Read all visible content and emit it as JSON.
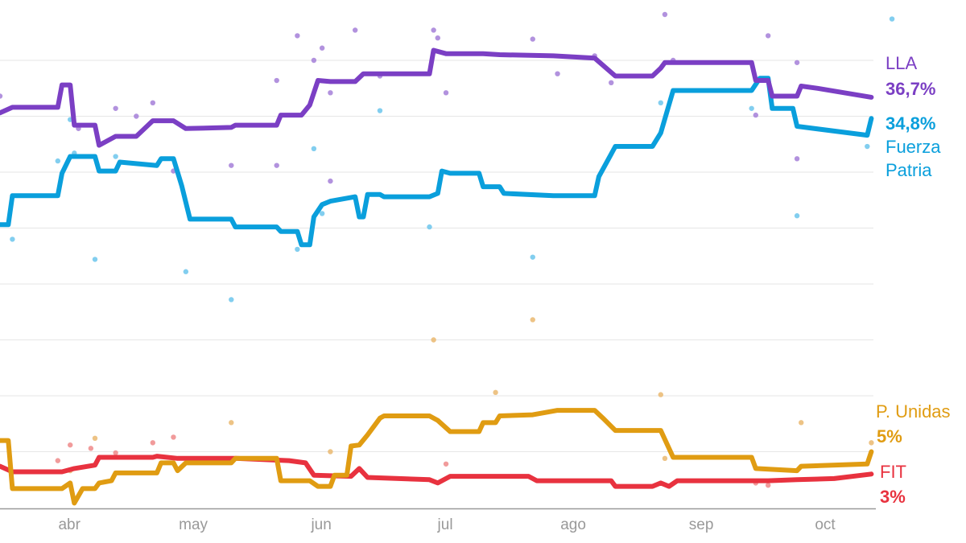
{
  "chart_data": {
    "type": "line",
    "xaxis": {
      "type": "date",
      "tick_labels": [
        "abr",
        "may",
        "jun",
        "jul",
        "ago",
        "sep",
        "oct"
      ],
      "tick_dates": [
        "2025-04-01",
        "2025-05-01",
        "2025-06-01",
        "2025-07-01",
        "2025-08-01",
        "2025-09-01",
        "2025-10-01"
      ],
      "range": [
        "2025-03-15",
        "2025-10-12"
      ]
    },
    "ylim": [
      0,
      45
    ],
    "gridlines_y": [
      5,
      10,
      15,
      20,
      25,
      30,
      35,
      40
    ],
    "grid": true,
    "legend": "direct labels at right end of lines",
    "series": [
      {
        "name": "LLA",
        "end_label": "36,7%",
        "color": "#7b3fc4",
        "dot_color": "#a57fd8",
        "line": [
          [
            "2025-03-15",
            35.3
          ],
          [
            "2025-03-18",
            35.8
          ],
          [
            "2025-03-29",
            35.8
          ],
          [
            "2025-03-30",
            37.8
          ],
          [
            "2025-04-01",
            37.8
          ],
          [
            "2025-04-02",
            34.2
          ],
          [
            "2025-04-07",
            34.2
          ],
          [
            "2025-04-08",
            32.4
          ],
          [
            "2025-04-12",
            33.2
          ],
          [
            "2025-04-17",
            33.2
          ],
          [
            "2025-04-21",
            34.6
          ],
          [
            "2025-04-26",
            34.6
          ],
          [
            "2025-04-29",
            33.9
          ],
          [
            "2025-05-10",
            34.0
          ],
          [
            "2025-05-11",
            34.2
          ],
          [
            "2025-05-21",
            34.2
          ],
          [
            "2025-05-22",
            35.1
          ],
          [
            "2025-05-27",
            35.1
          ],
          [
            "2025-05-29",
            36.0
          ],
          [
            "2025-05-31",
            38.2
          ],
          [
            "2025-06-03",
            38.1
          ],
          [
            "2025-06-09",
            38.1
          ],
          [
            "2025-06-11",
            38.8
          ],
          [
            "2025-06-27",
            38.8
          ],
          [
            "2025-06-28",
            40.9
          ],
          [
            "2025-07-01",
            40.6
          ],
          [
            "2025-07-10",
            40.6
          ],
          [
            "2025-07-14",
            40.5
          ],
          [
            "2025-07-27",
            40.4
          ],
          [
            "2025-08-06",
            40.2
          ],
          [
            "2025-08-11",
            38.6
          ],
          [
            "2025-08-20",
            38.6
          ],
          [
            "2025-08-22",
            39.3
          ],
          [
            "2025-08-23",
            39.8
          ],
          [
            "2025-09-13",
            39.8
          ],
          [
            "2025-09-14",
            38.2
          ],
          [
            "2025-09-17",
            38.2
          ],
          [
            "2025-09-18",
            36.8
          ],
          [
            "2025-09-24",
            36.8
          ],
          [
            "2025-09-25",
            37.7
          ],
          [
            "2025-09-29",
            37.5
          ],
          [
            "2025-10-12",
            36.7
          ]
        ],
        "polls": [
          [
            "2025-03-15",
            36.8
          ],
          [
            "2025-04-03",
            33.9
          ],
          [
            "2025-04-12",
            35.7
          ],
          [
            "2025-04-17",
            35.0
          ],
          [
            "2025-04-21",
            36.2
          ],
          [
            "2025-04-26",
            30.1
          ],
          [
            "2025-05-10",
            30.6
          ],
          [
            "2025-05-21",
            38.2
          ],
          [
            "2025-05-21",
            30.6
          ],
          [
            "2025-05-26",
            42.2
          ],
          [
            "2025-05-30",
            40.0
          ],
          [
            "2025-06-01",
            41.1
          ],
          [
            "2025-06-03",
            29.2
          ],
          [
            "2025-06-03",
            37.1
          ],
          [
            "2025-06-09",
            42.7
          ],
          [
            "2025-06-15",
            38.6
          ],
          [
            "2025-06-28",
            42.7
          ],
          [
            "2025-06-29",
            42.0
          ],
          [
            "2025-07-01",
            37.1
          ],
          [
            "2025-07-22",
            41.9
          ],
          [
            "2025-07-28",
            38.8
          ],
          [
            "2025-08-06",
            40.4
          ],
          [
            "2025-08-10",
            38.0
          ],
          [
            "2025-08-23",
            44.1
          ],
          [
            "2025-08-25",
            40.0
          ],
          [
            "2025-09-14",
            35.1
          ],
          [
            "2025-09-17",
            42.2
          ],
          [
            "2025-09-24",
            31.2
          ],
          [
            "2025-09-24",
            39.8
          ]
        ]
      },
      {
        "name": "Fuerza Patria",
        "name_lines": [
          "Fuerza",
          "Patria"
        ],
        "end_label": "34,8%",
        "color": "#0a9fdc",
        "dot_color": "#6cc6ec",
        "line": [
          [
            "2025-03-15",
            25.3
          ],
          [
            "2025-03-17",
            25.3
          ],
          [
            "2025-03-18",
            27.9
          ],
          [
            "2025-03-29",
            27.9
          ],
          [
            "2025-03-30",
            29.9
          ],
          [
            "2025-04-01",
            31.4
          ],
          [
            "2025-04-07",
            31.4
          ],
          [
            "2025-04-08",
            30.1
          ],
          [
            "2025-04-12",
            30.1
          ],
          [
            "2025-04-13",
            30.9
          ],
          [
            "2025-04-22",
            30.6
          ],
          [
            "2025-04-23",
            31.2
          ],
          [
            "2025-04-26",
            31.2
          ],
          [
            "2025-04-28",
            28.8
          ],
          [
            "2025-04-30",
            25.8
          ],
          [
            "2025-05-10",
            25.8
          ],
          [
            "2025-05-11",
            25.1
          ],
          [
            "2025-05-21",
            25.1
          ],
          [
            "2025-05-22",
            24.7
          ],
          [
            "2025-05-26",
            24.7
          ],
          [
            "2025-05-27",
            23.5
          ],
          [
            "2025-05-29",
            23.5
          ],
          [
            "2025-05-30",
            26.0
          ],
          [
            "2025-06-01",
            27.1
          ],
          [
            "2025-06-03",
            27.4
          ],
          [
            "2025-06-09",
            27.8
          ],
          [
            "2025-06-10",
            26.0
          ],
          [
            "2025-06-11",
            26.0
          ],
          [
            "2025-06-12",
            28.0
          ],
          [
            "2025-06-15",
            28.0
          ],
          [
            "2025-06-16",
            27.8
          ],
          [
            "2025-06-27",
            27.8
          ],
          [
            "2025-06-29",
            28.1
          ],
          [
            "2025-06-30",
            30.1
          ],
          [
            "2025-07-02",
            29.9
          ],
          [
            "2025-07-09",
            29.9
          ],
          [
            "2025-07-10",
            28.7
          ],
          [
            "2025-07-14",
            28.7
          ],
          [
            "2025-07-15",
            28.1
          ],
          [
            "2025-07-27",
            27.9
          ],
          [
            "2025-08-06",
            27.9
          ],
          [
            "2025-08-07",
            29.6
          ],
          [
            "2025-08-11",
            32.3
          ],
          [
            "2025-08-20",
            32.3
          ],
          [
            "2025-08-22",
            33.5
          ],
          [
            "2025-08-25",
            37.3
          ],
          [
            "2025-09-13",
            37.3
          ],
          [
            "2025-09-15",
            38.4
          ],
          [
            "2025-09-17",
            38.4
          ],
          [
            "2025-09-18",
            35.7
          ],
          [
            "2025-09-23",
            35.7
          ],
          [
            "2025-09-24",
            34.1
          ],
          [
            "2025-10-11",
            33.3
          ],
          [
            "2025-10-12",
            34.8
          ]
        ],
        "polls": [
          [
            "2025-03-18",
            24.0
          ],
          [
            "2025-03-29",
            31.0
          ],
          [
            "2025-04-01",
            34.7
          ],
          [
            "2025-04-02",
            31.7
          ],
          [
            "2025-04-07",
            22.2
          ],
          [
            "2025-04-12",
            31.4
          ],
          [
            "2025-04-29",
            21.1
          ],
          [
            "2025-05-10",
            18.6
          ],
          [
            "2025-05-26",
            23.1
          ],
          [
            "2025-05-30",
            32.1
          ],
          [
            "2025-06-01",
            26.3
          ],
          [
            "2025-06-15",
            35.5
          ],
          [
            "2025-06-27",
            25.1
          ],
          [
            "2025-07-22",
            22.4
          ],
          [
            "2025-08-22",
            36.2
          ],
          [
            "2025-09-13",
            35.7
          ],
          [
            "2025-09-24",
            26.1
          ],
          [
            "2025-10-11",
            32.3
          ],
          [
            "2025-10-17",
            43.7
          ]
        ]
      },
      {
        "name": "P. Unidas",
        "end_label": "5%",
        "color": "#e09c12",
        "dot_color": "#eab870",
        "line": [
          [
            "2025-03-15",
            6.0
          ],
          [
            "2025-03-17",
            6.0
          ],
          [
            "2025-03-18",
            1.7
          ],
          [
            "2025-03-30",
            1.7
          ],
          [
            "2025-04-01",
            2.2
          ],
          [
            "2025-04-02",
            0.4
          ],
          [
            "2025-04-04",
            1.7
          ],
          [
            "2025-04-07",
            1.7
          ],
          [
            "2025-04-08",
            2.2
          ],
          [
            "2025-04-11",
            2.4
          ],
          [
            "2025-04-12",
            3.1
          ],
          [
            "2025-04-22",
            3.1
          ],
          [
            "2025-04-23",
            4.0
          ],
          [
            "2025-04-26",
            4.0
          ],
          [
            "2025-04-27",
            3.3
          ],
          [
            "2025-04-29",
            4.0
          ],
          [
            "2025-05-10",
            4.0
          ],
          [
            "2025-05-11",
            4.4
          ],
          [
            "2025-05-21",
            4.4
          ],
          [
            "2025-05-22",
            2.4
          ],
          [
            "2025-05-29",
            2.4
          ],
          [
            "2025-05-31",
            1.9
          ],
          [
            "2025-06-03",
            1.9
          ],
          [
            "2025-06-04",
            2.9
          ],
          [
            "2025-06-07",
            2.9
          ],
          [
            "2025-06-08",
            5.5
          ],
          [
            "2025-06-10",
            5.6
          ],
          [
            "2025-06-12",
            6.5
          ],
          [
            "2025-06-15",
            8.0
          ],
          [
            "2025-06-16",
            8.2
          ],
          [
            "2025-06-27",
            8.2
          ],
          [
            "2025-06-29",
            7.8
          ],
          [
            "2025-07-02",
            6.8
          ],
          [
            "2025-07-09",
            6.8
          ],
          [
            "2025-07-10",
            7.6
          ],
          [
            "2025-07-13",
            7.6
          ],
          [
            "2025-07-14",
            8.2
          ],
          [
            "2025-07-22",
            8.3
          ],
          [
            "2025-07-28",
            8.7
          ],
          [
            "2025-08-06",
            8.7
          ],
          [
            "2025-08-08",
            8.0
          ],
          [
            "2025-08-11",
            6.9
          ],
          [
            "2025-08-22",
            6.9
          ],
          [
            "2025-08-25",
            4.5
          ],
          [
            "2025-09-13",
            4.5
          ],
          [
            "2025-09-14",
            3.5
          ],
          [
            "2025-09-24",
            3.3
          ],
          [
            "2025-09-25",
            3.7
          ],
          [
            "2025-10-11",
            3.9
          ],
          [
            "2025-10-12",
            5.0
          ]
        ],
        "polls": [
          [
            "2025-04-01",
            3.3
          ],
          [
            "2025-04-07",
            6.2
          ],
          [
            "2025-05-10",
            7.6
          ],
          [
            "2025-06-03",
            5.0
          ],
          [
            "2025-06-28",
            15.0
          ],
          [
            "2025-07-13",
            10.3
          ],
          [
            "2025-07-22",
            16.8
          ],
          [
            "2025-08-22",
            10.1
          ],
          [
            "2025-08-23",
            4.4
          ],
          [
            "2025-09-25",
            7.6
          ],
          [
            "2025-10-12",
            5.8
          ]
        ]
      },
      {
        "name": "FIT",
        "end_label": "3%",
        "color": "#e8323f",
        "dot_color": "#ee8a8a",
        "line": [
          [
            "2025-03-15",
            3.7
          ],
          [
            "2025-03-18",
            3.2
          ],
          [
            "2025-03-30",
            3.2
          ],
          [
            "2025-04-02",
            3.5
          ],
          [
            "2025-04-07",
            3.8
          ],
          [
            "2025-04-08",
            4.5
          ],
          [
            "2025-04-21",
            4.5
          ],
          [
            "2025-04-22",
            4.6
          ],
          [
            "2025-04-27",
            4.4
          ],
          [
            "2025-05-01",
            4.4
          ],
          [
            "2025-05-11",
            4.4
          ],
          [
            "2025-05-24",
            4.2
          ],
          [
            "2025-05-28",
            4.0
          ],
          [
            "2025-05-30",
            2.9
          ],
          [
            "2025-06-08",
            2.8
          ],
          [
            "2025-06-10",
            3.5
          ],
          [
            "2025-06-12",
            2.7
          ],
          [
            "2025-06-27",
            2.5
          ],
          [
            "2025-06-29",
            2.2
          ],
          [
            "2025-07-02",
            2.8
          ],
          [
            "2025-07-21",
            2.8
          ],
          [
            "2025-07-23",
            2.4
          ],
          [
            "2025-08-10",
            2.4
          ],
          [
            "2025-08-11",
            1.9
          ],
          [
            "2025-08-20",
            1.9
          ],
          [
            "2025-08-22",
            2.2
          ],
          [
            "2025-08-24",
            1.9
          ],
          [
            "2025-08-26",
            2.4
          ],
          [
            "2025-09-13",
            2.4
          ],
          [
            "2025-09-17",
            2.4
          ],
          [
            "2025-09-24",
            2.5
          ],
          [
            "2025-10-03",
            2.6
          ],
          [
            "2025-10-12",
            3.0
          ]
        ],
        "polls": [
          [
            "2025-03-29",
            4.2
          ],
          [
            "2025-04-01",
            5.6
          ],
          [
            "2025-04-06",
            5.3
          ],
          [
            "2025-04-12",
            4.9
          ],
          [
            "2025-04-21",
            5.8
          ],
          [
            "2025-04-26",
            6.3
          ],
          [
            "2025-07-01",
            3.9
          ],
          [
            "2025-09-14",
            2.2
          ],
          [
            "2025-09-17",
            2.0
          ]
        ]
      }
    ]
  }
}
